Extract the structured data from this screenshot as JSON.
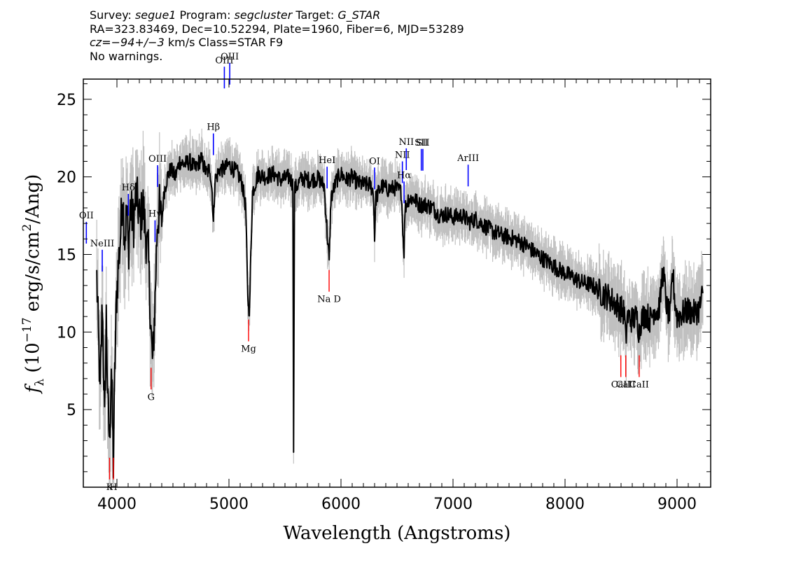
{
  "header": {
    "line1": {
      "survey_label": "Survey: ",
      "survey": "segue1",
      "program_label": " Program: ",
      "program": "segcluster",
      "target_label": " Target: ",
      "target": "G_STAR"
    },
    "line2": "RA=323.83469, Dec=10.52294, Plate=1960, Fiber=6, MJD=53289",
    "line3": {
      "cz": "cz=−94+/−3",
      "rest": " km/s Class=STAR F9"
    },
    "line4": "No warnings."
  },
  "chart_data": {
    "type": "line",
    "xlabel": "Wavelength (Angstroms)",
    "ylabel": "f_λ (10^-17 erg/s/cm^2/Ang)",
    "ylabel_parts": {
      "f": "f",
      "lambda_sub": "λ",
      "open": " (10",
      "exp": "−17",
      "mid": " erg/s/cm",
      "exp2": "2",
      "close": "/Ang)"
    },
    "xlim": [
      3700,
      9300
    ],
    "ylim": [
      0,
      26.3
    ],
    "x_ticks": [
      4000,
      5000,
      6000,
      7000,
      8000,
      9000
    ],
    "y_ticks": [
      5,
      10,
      15,
      20,
      25
    ],
    "series": [
      {
        "color": "#000000",
        "points": [
          [
            3820,
            13.5
          ],
          [
            3850,
            6
          ],
          [
            3870,
            12
          ],
          [
            3890,
            4
          ],
          [
            3905,
            11
          ],
          [
            3920,
            5
          ],
          [
            3935,
            3
          ],
          [
            3950,
            8
          ],
          [
            3968,
            1.5
          ],
          [
            3980,
            7
          ],
          [
            3995,
            12
          ],
          [
            4010,
            14
          ],
          [
            4030,
            16
          ],
          [
            4050,
            19
          ],
          [
            4070,
            16
          ],
          [
            4090,
            18
          ],
          [
            4102,
            15
          ],
          [
            4120,
            18
          ],
          [
            4150,
            17
          ],
          [
            4170,
            19
          ],
          [
            4190,
            18
          ],
          [
            4210,
            17
          ],
          [
            4230,
            18.5
          ],
          [
            4260,
            16
          ],
          [
            4280,
            15
          ],
          [
            4300,
            11
          ],
          [
            4310,
            9
          ],
          [
            4320,
            8
          ],
          [
            4330,
            10
          ],
          [
            4340,
            12
          ],
          [
            4360,
            17
          ],
          [
            4380,
            18
          ],
          [
            4400,
            17
          ],
          [
            4420,
            19
          ],
          [
            4450,
            20
          ],
          [
            4480,
            20.5
          ],
          [
            4520,
            20
          ],
          [
            4560,
            21
          ],
          [
            4600,
            20.8
          ],
          [
            4650,
            21
          ],
          [
            4700,
            20.5
          ],
          [
            4750,
            21.2
          ],
          [
            4800,
            20.2
          ],
          [
            4830,
            20.6
          ],
          [
            4850,
            19
          ],
          [
            4861,
            17
          ],
          [
            4875,
            19.8
          ],
          [
            4920,
            20.5
          ],
          [
            4960,
            20.5
          ],
          [
            5000,
            20.8
          ],
          [
            5040,
            20.5
          ],
          [
            5080,
            20.2
          ],
          [
            5120,
            19.5
          ],
          [
            5150,
            18
          ],
          [
            5165,
            13
          ],
          [
            5175,
            11.5
          ],
          [
            5185,
            11.6
          ],
          [
            5195,
            15
          ],
          [
            5210,
            19
          ],
          [
            5260,
            20.2
          ],
          [
            5320,
            20
          ],
          [
            5400,
            20.2
          ],
          [
            5460,
            19.8
          ],
          [
            5540,
            20
          ],
          [
            5570,
            19.5
          ],
          [
            5577,
            2.8
          ],
          [
            5585,
            19.2
          ],
          [
            5650,
            19.9
          ],
          [
            5720,
            19.8
          ],
          [
            5800,
            19.9
          ],
          [
            5850,
            19.4
          ],
          [
            5880,
            16
          ],
          [
            5895,
            14.5
          ],
          [
            5910,
            18.6
          ],
          [
            5960,
            19.8
          ],
          [
            6000,
            20.2
          ],
          [
            6050,
            19.8
          ],
          [
            6100,
            20
          ],
          [
            6150,
            19.6
          ],
          [
            6200,
            19.5
          ],
          [
            6260,
            19.5
          ],
          [
            6290,
            19
          ],
          [
            6300,
            16
          ],
          [
            6310,
            18.6
          ],
          [
            6360,
            19.4
          ],
          [
            6420,
            19.2
          ],
          [
            6480,
            19.3
          ],
          [
            6540,
            19
          ],
          [
            6555,
            16
          ],
          [
            6563,
            15.2
          ],
          [
            6572,
            18
          ],
          [
            6600,
            18.6
          ],
          [
            6650,
            18.6
          ],
          [
            6700,
            18.2
          ],
          [
            6760,
            18.2
          ],
          [
            6820,
            18
          ],
          [
            6880,
            17.5
          ],
          [
            6950,
            17.6
          ],
          [
            7000,
            17.4
          ],
          [
            7080,
            17.5
          ],
          [
            7150,
            17.1
          ],
          [
            7200,
            17.3
          ],
          [
            7270,
            16.9
          ],
          [
            7350,
            16.5
          ],
          [
            7450,
            16.2
          ],
          [
            7550,
            16
          ],
          [
            7650,
            15.6
          ],
          [
            7750,
            15
          ],
          [
            7850,
            14.5
          ],
          [
            7950,
            14
          ],
          [
            8050,
            13.6
          ],
          [
            8150,
            13.2
          ],
          [
            8250,
            13
          ],
          [
            8300,
            12.6
          ],
          [
            8350,
            12.4
          ],
          [
            8400,
            12.2
          ],
          [
            8450,
            11.8
          ],
          [
            8500,
            11.5
          ],
          [
            8530,
            11.2
          ],
          [
            8542,
            9.3
          ],
          [
            8555,
            11
          ],
          [
            8600,
            10.8
          ],
          [
            8640,
            11
          ],
          [
            8662,
            10
          ],
          [
            8680,
            10.8
          ],
          [
            8720,
            11.2
          ],
          [
            8760,
            10.8
          ],
          [
            8800,
            11.5
          ],
          [
            8830,
            11.3
          ],
          [
            8850,
            12
          ],
          [
            8870,
            14
          ],
          [
            8890,
            13
          ],
          [
            8910,
            11.5
          ],
          [
            8940,
            11
          ],
          [
            8960,
            14
          ],
          [
            8980,
            12
          ],
          [
            9000,
            11
          ],
          [
            9050,
            11.2
          ],
          [
            9100,
            11.4
          ],
          [
            9150,
            11.2
          ],
          [
            9200,
            11.5
          ],
          [
            9230,
            12.5
          ]
        ]
      }
    ],
    "emission_lines": [
      {
        "label": "OII",
        "x": 3727,
        "color": "#0000ff"
      },
      {
        "label": "NeIII",
        "x": 3869,
        "color": "#0000ff"
      },
      {
        "label": "Hδ",
        "x": 4102,
        "color": "#0000ff"
      },
      {
        "label": "Hγ",
        "x": 4340,
        "color": "#0000ff"
      },
      {
        "label": "OIII",
        "x": 4363,
        "color": "#0000ff"
      },
      {
        "label": "Hβ",
        "x": 4861,
        "color": "#0000ff"
      },
      {
        "label": "OIII",
        "x": 4959,
        "color": "#0000ff"
      },
      {
        "label": "OIII",
        "x": 5007,
        "color": "#0000ff"
      },
      {
        "label": "HeI",
        "x": 5876,
        "color": "#0000ff"
      },
      {
        "label": "OI",
        "x": 6300,
        "color": "#0000ff"
      },
      {
        "label": "NII",
        "x": 6548,
        "color": "#0000ff"
      },
      {
        "label": "Hα",
        "x": 6563,
        "color": "#0000ff"
      },
      {
        "label": "NII",
        "x": 6583,
        "color": "#0000ff"
      },
      {
        "label": "SII",
        "x": 6717,
        "color": "#0000ff"
      },
      {
        "label": "SII",
        "x": 6731,
        "color": "#0000ff"
      },
      {
        "label": "ArIII",
        "x": 7135,
        "color": "#0000ff"
      }
    ],
    "absorption_lines": [
      {
        "label": "K",
        "x": 3934,
        "color": "#ff0000"
      },
      {
        "label": "H",
        "x": 3969,
        "color": "#ff0000"
      },
      {
        "label": "G",
        "x": 4305,
        "color": "#ff0000"
      },
      {
        "label": "Mg",
        "x": 5175,
        "color": "#ff0000"
      },
      {
        "label": "Na D",
        "x": 5894,
        "color": "#ff0000"
      },
      {
        "label": "CaII",
        "x": 8498,
        "color": "#ff0000"
      },
      {
        "label": "CaII",
        "x": 8542,
        "color": "#ff0000"
      },
      {
        "label": "CaII",
        "x": 8662,
        "color": "#ff0000"
      }
    ],
    "colors": {
      "flux": "#000000",
      "error_band": "#c0c0c0",
      "emission": "#0000ff",
      "absorption": "#ff0000"
    }
  }
}
